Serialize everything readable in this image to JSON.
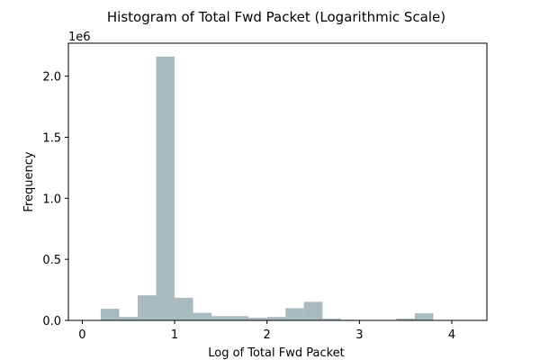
{
  "chart_data": {
    "type": "bar",
    "title": "Histogram of Total Fwd Packet (Logarithmic Scale)",
    "xlabel": "Log of Total Fwd Packet",
    "ylabel": "Frequency",
    "y_offset_text": "1e6",
    "y_scale_multiplier": 1000000,
    "xlim": [
      -0.15,
      4.38
    ],
    "ylim": [
      0,
      2.27
    ],
    "x_ticks": [
      0,
      1,
      2,
      3,
      4
    ],
    "x_tick_labels": [
      "0",
      "1",
      "2",
      "3",
      "4"
    ],
    "y_ticks": [
      0.0,
      0.5,
      1.0,
      1.5,
      2.0
    ],
    "y_tick_labels": [
      "0.0",
      "0.5",
      "1.0",
      "1.5",
      "2.0"
    ],
    "bar_color": "#a9bbbf",
    "grid": false,
    "bins": [
      {
        "x0": 0.0,
        "x1": 0.2,
        "value": 0.0
      },
      {
        "x0": 0.2,
        "x1": 0.4,
        "value": 0.095
      },
      {
        "x0": 0.4,
        "x1": 0.6,
        "value": 0.028
      },
      {
        "x0": 0.6,
        "x1": 0.8,
        "value": 0.205
      },
      {
        "x0": 0.8,
        "x1": 1.0,
        "value": 2.16
      },
      {
        "x0": 1.0,
        "x1": 1.2,
        "value": 0.185
      },
      {
        "x0": 1.2,
        "x1": 1.4,
        "value": 0.062
      },
      {
        "x0": 1.4,
        "x1": 1.6,
        "value": 0.035
      },
      {
        "x0": 1.6,
        "x1": 1.8,
        "value": 0.035
      },
      {
        "x0": 1.8,
        "x1": 2.0,
        "value": 0.022
      },
      {
        "x0": 2.0,
        "x1": 2.2,
        "value": 0.028
      },
      {
        "x0": 2.2,
        "x1": 2.4,
        "value": 0.1
      },
      {
        "x0": 2.4,
        "x1": 2.6,
        "value": 0.152
      },
      {
        "x0": 2.6,
        "x1": 2.8,
        "value": 0.014
      },
      {
        "x0": 2.8,
        "x1": 3.0,
        "value": 0.005
      },
      {
        "x0": 3.0,
        "x1": 3.2,
        "value": 0.001
      },
      {
        "x0": 3.2,
        "x1": 3.4,
        "value": 0.002
      },
      {
        "x0": 3.4,
        "x1": 3.6,
        "value": 0.015
      },
      {
        "x0": 3.6,
        "x1": 3.8,
        "value": 0.058
      },
      {
        "x0": 3.8,
        "x1": 4.0,
        "value": 0.002
      },
      {
        "x0": 4.0,
        "x1": 4.2,
        "value": 0.001
      }
    ]
  }
}
